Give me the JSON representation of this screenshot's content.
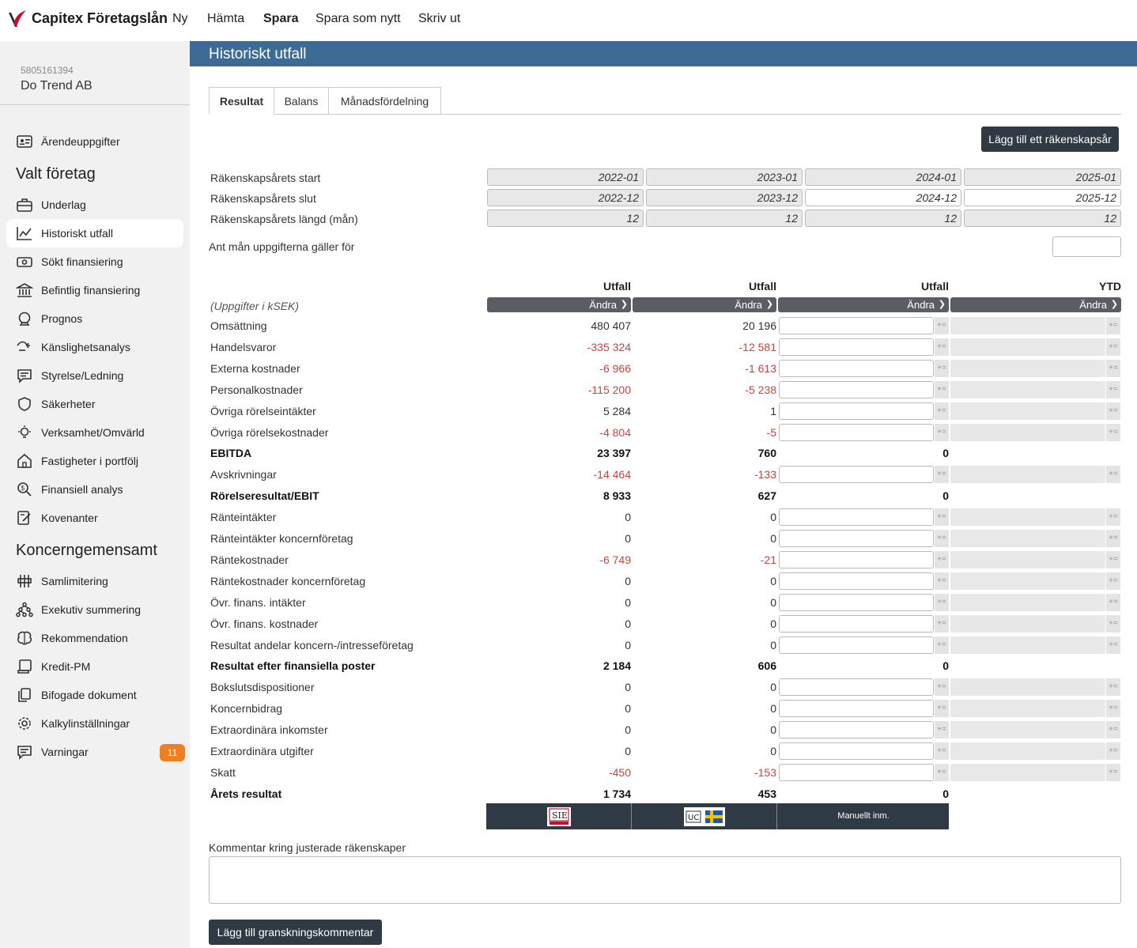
{
  "app": {
    "name": "Capitex Företagslån"
  },
  "topmenu": [
    {
      "label": "Ny"
    },
    {
      "label": "Hämta"
    },
    {
      "label": "Spara"
    },
    {
      "label": "Spara som nytt"
    },
    {
      "label": "Skriv ut"
    }
  ],
  "company": {
    "orgnr": "5805161394",
    "name": "Do Trend AB"
  },
  "sidebar": {
    "top_item": {
      "label": "Ärendeuppgifter",
      "icon": "id-card-icon"
    },
    "section1": "Valt företag",
    "items1": [
      {
        "label": "Underlag",
        "icon": "briefcase-icon"
      },
      {
        "label": "Historiskt utfall",
        "icon": "chart-line-icon",
        "active": true
      },
      {
        "label": "Sökt finansiering",
        "icon": "money-icon"
      },
      {
        "label": "Befintlig finansiering",
        "icon": "bank-icon"
      },
      {
        "label": "Prognos",
        "icon": "crystal-ball-icon"
      },
      {
        "label": "Känslighetsanalys",
        "icon": "sensitivity-icon"
      },
      {
        "label": "Styrelse/Ledning",
        "icon": "board-icon"
      },
      {
        "label": "Säkerheter",
        "icon": "shield-icon"
      },
      {
        "label": "Verksamhet/Omvärld",
        "icon": "lightbulb-icon"
      },
      {
        "label": "Fastigheter i portfölj",
        "icon": "house-icon"
      },
      {
        "label": "Finansiell analys",
        "icon": "analysis-icon"
      },
      {
        "label": "Kovenanter",
        "icon": "covenant-icon"
      }
    ],
    "section2": "Koncerngemensamt",
    "items2": [
      {
        "label": "Samlimitering",
        "icon": "group-limit-icon"
      },
      {
        "label": "Exekutiv summering",
        "icon": "hierarchy-icon"
      },
      {
        "label": "Rekommendation",
        "icon": "brain-icon"
      },
      {
        "label": "Kredit-PM",
        "icon": "memo-icon"
      },
      {
        "label": "Bifogade dokument",
        "icon": "documents-icon"
      },
      {
        "label": "Kalkylinställningar",
        "icon": "settings-icon"
      },
      {
        "label": "Varningar",
        "icon": "warning-icon",
        "badge": "11"
      }
    ]
  },
  "page": {
    "title": "Historiskt utfall"
  },
  "tabs": [
    {
      "label": "Resultat",
      "active": true
    },
    {
      "label": "Balans"
    },
    {
      "label": "Månadsfördelning"
    }
  ],
  "add_year_button": "Lägg till ett räkenskapsår",
  "fiscal": {
    "start_label": "Räkenskapsårets start",
    "end_label": "Räkenskapsårets slut",
    "length_label": "Räkenskapsårets längd (mån)",
    "starts": [
      "2022-01",
      "2023-01",
      "2024-01",
      "2025-01"
    ],
    "ends": [
      "2022-12",
      "2023-12",
      "2024-12",
      "2025-12"
    ],
    "lengths": [
      "12",
      "12",
      "12",
      "12"
    ],
    "months_label": "Ant mån uppgifterna gäller för"
  },
  "columns": [
    "Utfall",
    "Utfall",
    "Utfall",
    "YTD"
  ],
  "andra": "Ändra",
  "unit_label": "(Uppgifter i kSEK)",
  "rows": [
    {
      "label": "Omsättning",
      "v1": "480 407",
      "v2": "20 196",
      "type": "input"
    },
    {
      "label": "Handelsvaror",
      "v1": "-335 324",
      "v2": "-12 581",
      "type": "input",
      "neg": true
    },
    {
      "label": "Externa kostnader",
      "v1": "-6 966",
      "v2": "-1 613",
      "type": "input",
      "neg": true
    },
    {
      "label": "Personalkostnader",
      "v1": "-115 200",
      "v2": "-5 238",
      "type": "input",
      "neg": true
    },
    {
      "label": "Övriga rörelseintäkter",
      "v1": "5 284",
      "v2": "1",
      "type": "input"
    },
    {
      "label": "Övriga rörelsekostnader",
      "v1": "-4 804",
      "v2": "-5",
      "type": "input",
      "neg": true
    },
    {
      "label": "EBITDA",
      "v1": "23 397",
      "v2": "760",
      "v3": "0",
      "type": "total"
    },
    {
      "label": "Avskrivningar",
      "v1": "-14 464",
      "v2": "-133",
      "type": "input",
      "neg": true
    },
    {
      "label": "Rörelseresultat/EBIT",
      "v1": "8 933",
      "v2": "627",
      "v3": "0",
      "type": "total"
    },
    {
      "label": "Ränteintäkter",
      "v1": "0",
      "v2": "0",
      "type": "input"
    },
    {
      "label": "Ränteintäkter koncernföretag",
      "v1": "0",
      "v2": "0",
      "type": "input"
    },
    {
      "label": "Räntekostnader",
      "v1": "-6 749",
      "v2": "-21",
      "type": "input",
      "neg": true
    },
    {
      "label": "Räntekostnader koncernföretag",
      "v1": "0",
      "v2": "0",
      "type": "input"
    },
    {
      "label": "Övr. finans. intäkter",
      "v1": "0",
      "v2": "0",
      "type": "input"
    },
    {
      "label": "Övr. finans. kostnader",
      "v1": "0",
      "v2": "0",
      "type": "input"
    },
    {
      "label": "Resultat andelar koncern-/intresseföretag",
      "v1": "0",
      "v2": "0",
      "type": "input"
    },
    {
      "label": "Resultat efter finansiella poster",
      "v1": "2 184",
      "v2": "606",
      "v3": "0",
      "type": "total"
    },
    {
      "label": "Bokslutsdispositioner",
      "v1": "0",
      "v2": "0",
      "type": "input"
    },
    {
      "label": "Koncernbidrag",
      "v1": "0",
      "v2": "0",
      "type": "input"
    },
    {
      "label": "Extraordinära inkomster",
      "v1": "0",
      "v2": "0",
      "type": "input"
    },
    {
      "label": "Extraordinära utgifter",
      "v1": "0",
      "v2": "0",
      "type": "input"
    },
    {
      "label": "Skatt",
      "v1": "-450",
      "v2": "-153",
      "type": "input",
      "neg": true
    },
    {
      "label": "Årets resultat",
      "v1": "1 734",
      "v2": "453",
      "v3": "0",
      "type": "total"
    }
  ],
  "sources": {
    "manual": "Manuellt inm."
  },
  "comment": {
    "label": "Kommentar kring justerade räkenskaper",
    "value": ""
  },
  "review_button": "Lägg till granskningskommentar",
  "colors": {
    "titlebar": "#3e6b96",
    "dark": "#2f3a44",
    "negative": "#c9453f",
    "badge": "#f07f22"
  }
}
